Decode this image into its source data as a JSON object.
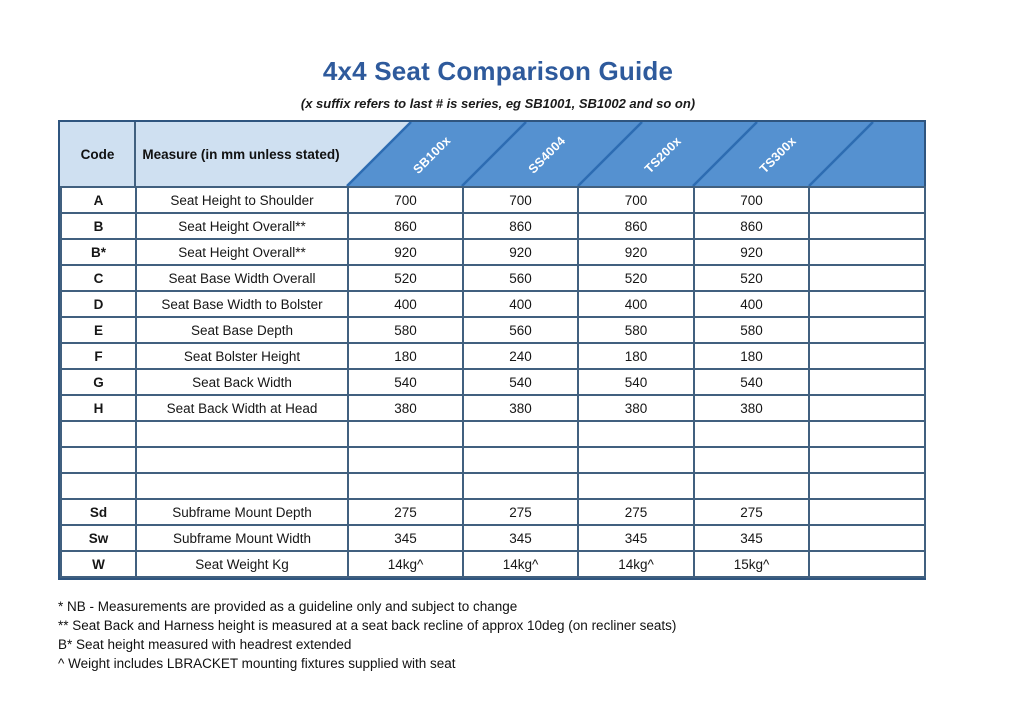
{
  "title": "4x4 Seat Comparison Guide",
  "subtitle": "(x suffix refers to last # is series, eg SB1001, SB1002 and so on)",
  "table": {
    "code_header": "Code",
    "measure_header": "Measure (in mm unless stated)",
    "series_headers": [
      "SB100x",
      "SS4004",
      "TS200x",
      "TS300x",
      ""
    ],
    "rows": [
      {
        "code": "A",
        "measure": "Seat Height to Shoulder",
        "values": [
          "700",
          "700",
          "700",
          "700",
          ""
        ]
      },
      {
        "code": "B",
        "measure": "Seat Height Overall**",
        "values": [
          "860",
          "860",
          "860",
          "860",
          ""
        ]
      },
      {
        "code": "B*",
        "measure": "Seat Height Overall**",
        "values": [
          "920",
          "920",
          "920",
          "920",
          ""
        ]
      },
      {
        "code": "C",
        "measure": "Seat Base Width Overall",
        "values": [
          "520",
          "560",
          "520",
          "520",
          ""
        ]
      },
      {
        "code": "D",
        "measure": "Seat Base Width to Bolster",
        "values": [
          "400",
          "400",
          "400",
          "400",
          ""
        ]
      },
      {
        "code": "E",
        "measure": "Seat Base Depth",
        "values": [
          "580",
          "560",
          "580",
          "580",
          ""
        ]
      },
      {
        "code": "F",
        "measure": "Seat Bolster Height",
        "values": [
          "180",
          "240",
          "180",
          "180",
          ""
        ]
      },
      {
        "code": "G",
        "measure": "Seat Back Width",
        "values": [
          "540",
          "540",
          "540",
          "540",
          ""
        ]
      },
      {
        "code": "H",
        "measure": "Seat Back Width at Head",
        "values": [
          "380",
          "380",
          "380",
          "380",
          ""
        ]
      },
      {
        "code": "",
        "measure": "",
        "values": [
          "",
          "",
          "",
          "",
          ""
        ]
      },
      {
        "code": "",
        "measure": "",
        "values": [
          "",
          "",
          "",
          "",
          ""
        ]
      },
      {
        "code": "",
        "measure": "",
        "values": [
          "",
          "",
          "",
          "",
          ""
        ]
      },
      {
        "code": "Sd",
        "measure": "Subframe Mount Depth",
        "values": [
          "275",
          "275",
          "275",
          "275",
          ""
        ]
      },
      {
        "code": "Sw",
        "measure": "Subframe Mount Width",
        "values": [
          "345",
          "345",
          "345",
          "345",
          ""
        ]
      },
      {
        "code": "W",
        "measure": "Seat Weight Kg",
        "values": [
          "14kg^",
          "14kg^",
          "14kg^",
          "15kg^",
          ""
        ]
      }
    ]
  },
  "footnotes": [
    "* NB - Measurements are provided as a guideline only and subject to change",
    "** Seat Back and Harness height is measured at a seat back recline of approx 10deg (on recliner seats)",
    "B* Seat height measured with headrest extended",
    "^ Weight includes LBRACKET mounting fixtures supplied with seat"
  ],
  "colors": {
    "title_text": "#2e5a9c",
    "header_band": "#5591d0",
    "header_light": "#cfe0f1",
    "header_line": "#2d6cb2",
    "grid_border": "#41607f",
    "outer_border": "#2f557f",
    "header_label_text": "#ffffff",
    "body_text": "#161616"
  }
}
